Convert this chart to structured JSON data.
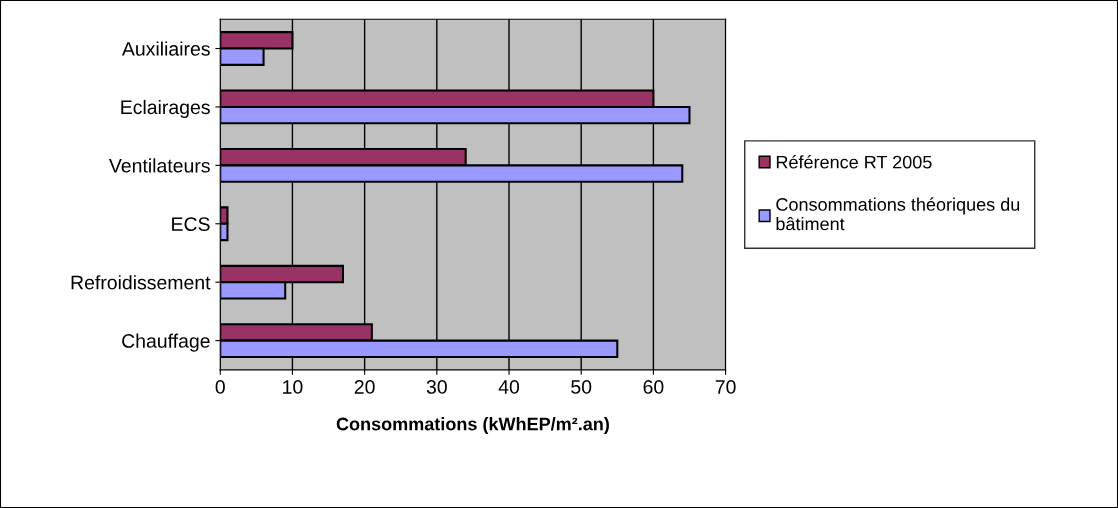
{
  "chart_data": {
    "type": "bar",
    "orientation": "horizontal",
    "xlabel": "Consommations (kWhEP/m².an)",
    "categories": [
      "Auxiliaires",
      "Eclairages",
      "Ventilateurs",
      "ECS",
      "Refroidissement",
      "Chauffage"
    ],
    "series": [
      {
        "name": "Référence RT 2005",
        "color": "#993366",
        "values": [
          10,
          60,
          34,
          1,
          17,
          21
        ]
      },
      {
        "name": "Consommations théoriques du bâtiment",
        "color": "#9999ff",
        "values": [
          6,
          65,
          64,
          1,
          9,
          55
        ]
      }
    ],
    "xlim": [
      0,
      70
    ],
    "xticks": [
      0,
      10,
      20,
      30,
      40,
      50,
      60,
      70
    ],
    "grid": "x",
    "legend": "right"
  }
}
